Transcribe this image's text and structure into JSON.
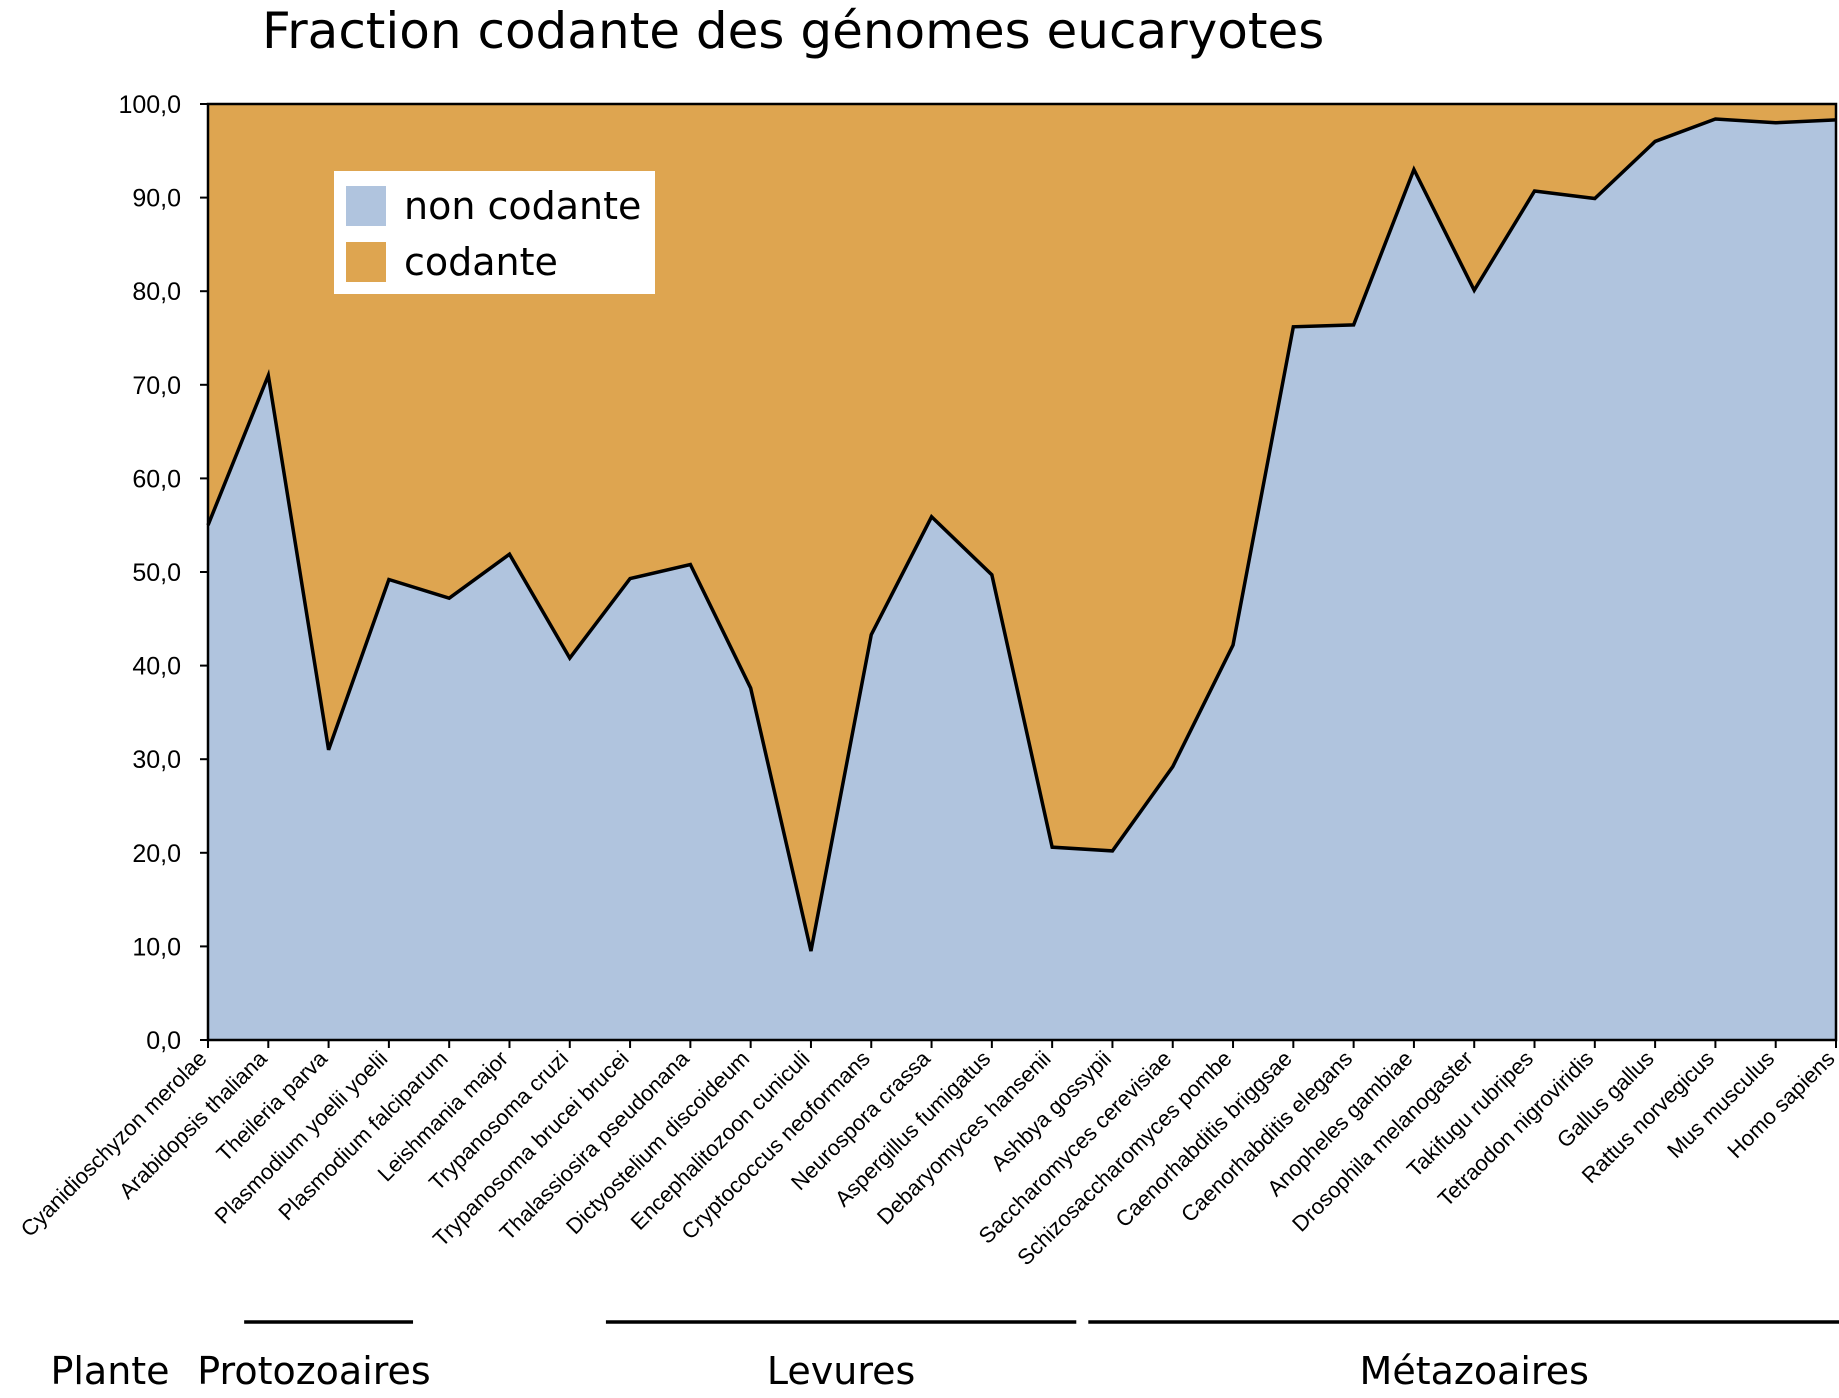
{
  "chart_data": {
    "type": "area",
    "title": "Fraction codante des génomes eucaryotes",
    "xlabel": "",
    "ylabel": "",
    "ylim": [
      0,
      100
    ],
    "yticks": [
      "0,0",
      "10,0",
      "20,0",
      "30,0",
      "40,0",
      "50,0",
      "60,0",
      "70,0",
      "80,0",
      "90,0",
      "100,0"
    ],
    "stacked": true,
    "categories": [
      "Cyanidioschyzon merolae",
      "Arabidopsis thaliana",
      "Theileria parva",
      "Plasmodium yoelii yoelii",
      "Plasmodium falciparum",
      "Leishmania major",
      "Trypanosoma cruzi",
      "Trypanosoma brucei brucei",
      "Thalassiosira pseudonana",
      "Dictyostelium discoideum",
      "Encephalitozoon cuniculi",
      "Cryptococcus neoformans",
      "Neurospora crassa",
      "Aspergillus fumigatus",
      "Debaryomyces hansenii",
      "Ashbya gossypii",
      "Saccharomyces cerevisiae",
      "Schizosaccharomyces pombe",
      "Caenorhabditis briggsae",
      "Caenorhabditis elegans",
      "Anopheles gambiae",
      "Drosophila melanogaster",
      "Takifugu rubripes",
      "Tetraodon nigroviridis",
      "Gallus gallus",
      "Rattus norvegicus",
      "Mus musculus",
      "Homo sapiens"
    ],
    "series": [
      {
        "name": "non codante",
        "color": "#b0c4de",
        "values": [
          55.0,
          71.0,
          31.0,
          49.2,
          47.2,
          51.9,
          40.8,
          49.3,
          50.8,
          37.6,
          9.5,
          43.3,
          55.9,
          49.7,
          20.6,
          20.2,
          29.2,
          42.2,
          76.2,
          76.4,
          93.0,
          80.1,
          90.7,
          89.9,
          96.0,
          98.4,
          98.0,
          98.3
        ]
      },
      {
        "name": "codante",
        "color": "#dea550",
        "values": [
          45.0,
          29.0,
          69.0,
          50.8,
          52.8,
          48.1,
          59.2,
          50.7,
          49.2,
          62.4,
          90.5,
          56.7,
          44.1,
          50.3,
          79.4,
          79.8,
          70.8,
          57.8,
          23.8,
          23.6,
          7.0,
          19.9,
          9.3,
          10.1,
          4.0,
          1.6,
          2.0,
          1.7
        ]
      }
    ],
    "legend": {
      "position": "top-left",
      "entries": [
        "non codante",
        "codante"
      ]
    },
    "groups": [
      {
        "label": "Plante",
        "from": 0,
        "to": 0,
        "bracket": false
      },
      {
        "label": "Protozoaires",
        "from": 1,
        "to": 3,
        "bracket": true
      },
      {
        "label": "Levures",
        "from": 7,
        "to": 14,
        "bracket": true
      },
      {
        "label": "Métazoaires",
        "from": 15,
        "to": 27,
        "bracket": true
      }
    ],
    "grid": false
  }
}
